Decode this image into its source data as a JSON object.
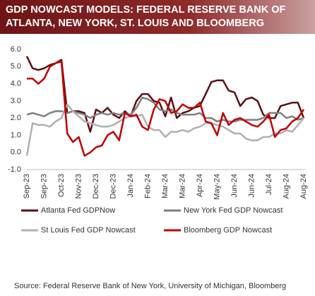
{
  "chart_data": {
    "type": "line",
    "title": "GDP NOWCAST MODELS: FEDERAL RESERVE BANK OF ATLANTA, NEW YORK, ST. LOUIS AND BLOOMBERG",
    "source": "Source: Federal Reserve Bank of New York, University of Michigan, Bloomberg",
    "categories": [
      "Sep-23",
      null,
      null,
      "Sep-23",
      null,
      null,
      "Oct-23",
      null,
      null,
      "Nov-23",
      null,
      null,
      "Dec-23",
      null,
      null,
      "Dec-23",
      null,
      null,
      "Jan-24",
      null,
      null,
      "Feb-24",
      null,
      null,
      "Mar-24",
      null,
      null,
      "Mar-24",
      null,
      null,
      "Apr-24",
      null,
      null,
      "May-24",
      null,
      null,
      "Jun-24",
      null,
      null,
      "Jun-24",
      null,
      null,
      "Jul-24",
      null,
      null,
      "Aug-24",
      null,
      null,
      "Aug-24"
    ],
    "series": [
      {
        "name": "Atlanta Fed GDPNow",
        "color": "#5c0f12",
        "values": [
          5.6,
          4.9,
          4.8,
          4.9,
          5.1,
          5.2,
          5.4,
          2.3,
          2.4,
          2.4,
          2.3,
          1.2,
          2.5,
          2.3,
          2.6,
          2.2,
          2.0,
          2.4,
          2.1,
          3.0,
          3.4,
          3.4,
          3.0,
          2.9,
          2.1,
          3.2,
          2.0,
          2.3,
          2.4,
          2.6,
          2.7,
          3.4,
          4.1,
          4.2,
          4.2,
          3.6,
          3.5,
          2.7,
          3.1,
          3.2,
          3.0,
          2.2,
          2.0,
          2.0,
          2.7,
          2.8,
          2.9,
          2.9,
          2.0
        ]
      },
      {
        "name": "New York Fed GDP Nowcast",
        "color": "#7f7f7f",
        "values": [
          2.2,
          2.3,
          2.2,
          2.1,
          2.3,
          2.4,
          2.4,
          2.3,
          2.4,
          2.3,
          2.2,
          2.0,
          2.2,
          2.3,
          2.2,
          2.3,
          2.2,
          2.3,
          2.2,
          2.6,
          3.2,
          3.1,
          2.9,
          2.5,
          2.4,
          2.5,
          2.3,
          2.2,
          2.2,
          2.2,
          2.3,
          2.0,
          2.0,
          1.8,
          1.9,
          1.8,
          1.8,
          1.9,
          1.9,
          1.9,
          1.9,
          2.0,
          2.3,
          2.3,
          2.3,
          2.0,
          2.1,
          1.9,
          2.0
        ]
      },
      {
        "name": "St Louis Fed GDP Nowcast",
        "color": "#b0b0b0",
        "values": [
          -0.2,
          1.7,
          1.6,
          1.6,
          1.5,
          1.8,
          2.0,
          2.8,
          2.4,
          2.1,
          1.8,
          1.7,
          1.6,
          1.5,
          1.5,
          1.6,
          1.8,
          2.0,
          2.1,
          2.1,
          2.2,
          1.5,
          1.3,
          1.3,
          0.9,
          1.2,
          1.2,
          1.3,
          1.2,
          1.4,
          1.5,
          1.7,
          1.7,
          1.6,
          1.5,
          1.3,
          1.1,
          1.1,
          0.8,
          0.7,
          0.7,
          0.9,
          0.9,
          1.1,
          1.1,
          1.3,
          1.2,
          1.6,
          2.0
        ]
      },
      {
        "name": "Bloomberg GDP Nowcast",
        "color": "#c00000",
        "values": [
          4.3,
          4.3,
          4.0,
          4.3,
          5.0,
          5.2,
          5.3,
          1.1,
          0.6,
          0.9,
          -0.2,
          0.0,
          0.3,
          0.4,
          1.0,
          1.2,
          0.7,
          2.3,
          2.1,
          2.2,
          1.5,
          1.3,
          2.5,
          3.1,
          3.0,
          2.3,
          2.4,
          2.8,
          2.6,
          2.6,
          2.9,
          1.8,
          1.7,
          1.0,
          2.3,
          1.6,
          1.9,
          2.0,
          1.8,
          1.6,
          1.5,
          1.8,
          2.2,
          0.9,
          1.3,
          1.4,
          1.8,
          2.0,
          2.5
        ]
      }
    ],
    "ylim": [
      -1,
      6
    ],
    "yticks": [
      {
        "value": -1,
        "label": "-1.0"
      },
      {
        "value": 0,
        "label": "0.0"
      },
      {
        "value": 1,
        "label": "1.0"
      },
      {
        "value": 2,
        "label": "2.0"
      },
      {
        "value": 3,
        "label": "3.0"
      },
      {
        "value": 4,
        "label": "4.0"
      },
      {
        "value": 5,
        "label": "5.0"
      },
      {
        "value": 6,
        "label": "6.0"
      }
    ],
    "grid": false
  }
}
